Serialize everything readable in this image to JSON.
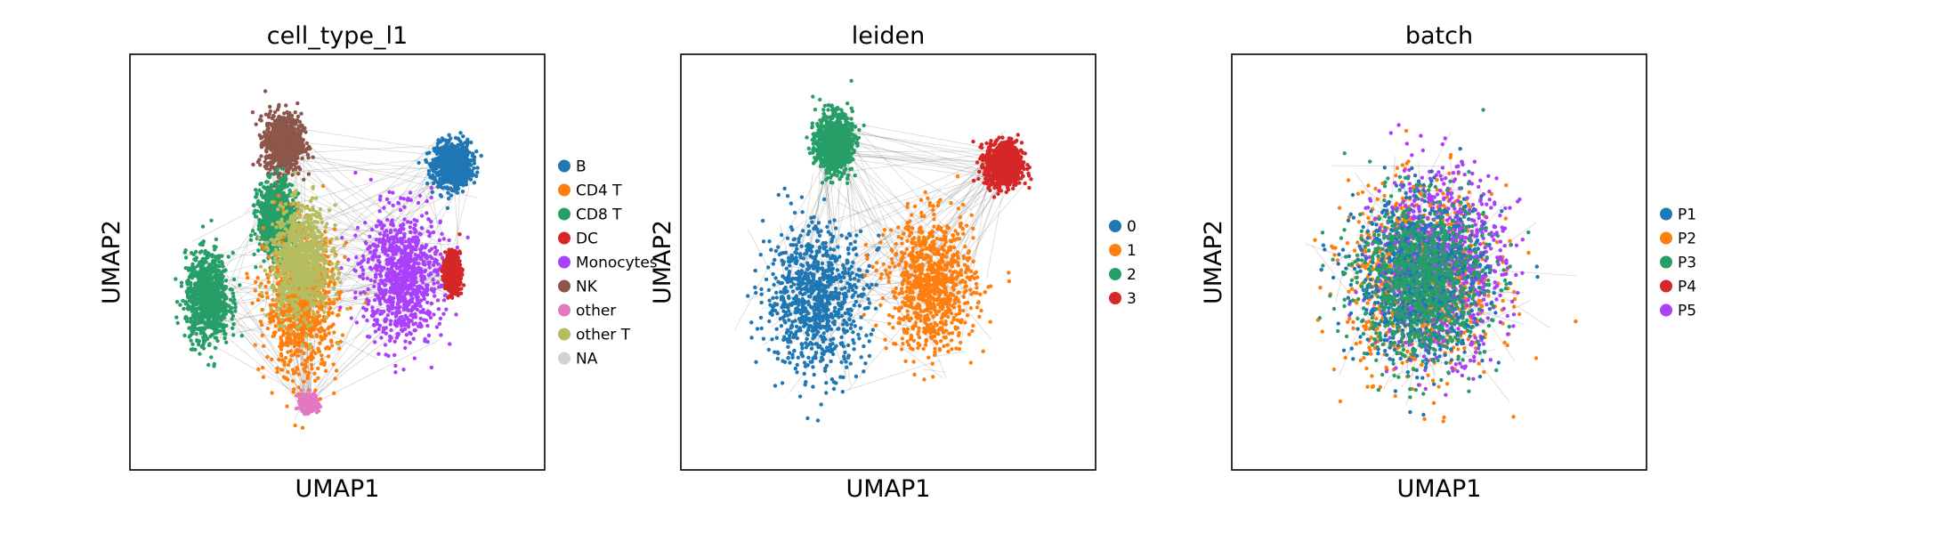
{
  "chart_data": [
    {
      "type": "scatter",
      "title": "cell_type_l1",
      "xlabel": "UMAP1",
      "ylabel": "UMAP2",
      "grid": false,
      "ticks": false,
      "overlay": "gray PAGA-style connecting edges behind points",
      "legend_position": "right",
      "legend": [
        {
          "label": "B",
          "color": "#1f77b4"
        },
        {
          "label": "CD4 T",
          "color": "#ff7f0e"
        },
        {
          "label": "CD8 T",
          "color": "#279e68"
        },
        {
          "label": "DC",
          "color": "#d62728"
        },
        {
          "label": "Monocytes",
          "color": "#aa40fc"
        },
        {
          "label": "NK",
          "color": "#8c564b"
        },
        {
          "label": "other",
          "color": "#e377c2"
        },
        {
          "label": "other T",
          "color": "#b5bd61"
        },
        {
          "label": "NA",
          "color": "#d3d3d3"
        }
      ],
      "clusters": [
        {
          "group": "B",
          "center": [
            0.82,
            0.77
          ],
          "spread": [
            0.05,
            0.06
          ]
        },
        {
          "group": "NK",
          "center": [
            0.35,
            0.83
          ],
          "spread": [
            0.05,
            0.08
          ]
        },
        {
          "group": "CD8 T",
          "center": [
            0.14,
            0.4
          ],
          "spread": [
            0.06,
            0.12
          ]
        },
        {
          "group": "CD8 T",
          "center": [
            0.33,
            0.62
          ],
          "spread": [
            0.05,
            0.1
          ]
        },
        {
          "group": "CD4 T",
          "center": [
            0.4,
            0.38
          ],
          "spread": [
            0.1,
            0.2
          ]
        },
        {
          "group": "Monocytes",
          "center": [
            0.68,
            0.46
          ],
          "spread": [
            0.11,
            0.18
          ]
        },
        {
          "group": "DC",
          "center": [
            0.82,
            0.47
          ],
          "spread": [
            0.02,
            0.05
          ]
        },
        {
          "group": "other",
          "center": [
            0.42,
            0.11
          ],
          "spread": [
            0.02,
            0.02
          ]
        },
        {
          "group": "other T",
          "center": [
            0.4,
            0.5
          ],
          "spread": [
            0.08,
            0.15
          ]
        }
      ]
    },
    {
      "type": "scatter",
      "title": "leiden",
      "xlabel": "UMAP1",
      "ylabel": "UMAP2",
      "grid": false,
      "ticks": false,
      "overlay": "gray PAGA-style connecting edges behind points",
      "legend_position": "right",
      "legend": [
        {
          "label": "0",
          "color": "#1f77b4"
        },
        {
          "label": "1",
          "color": "#ff7f0e"
        },
        {
          "label": "2",
          "color": "#279e68"
        },
        {
          "label": "3",
          "color": "#d62728"
        }
      ],
      "clusters": [
        {
          "group": "0",
          "center": [
            0.3,
            0.4
          ],
          "spread": [
            0.14,
            0.2
          ]
        },
        {
          "group": "1",
          "center": [
            0.62,
            0.44
          ],
          "spread": [
            0.12,
            0.18
          ]
        },
        {
          "group": "2",
          "center": [
            0.35,
            0.83
          ],
          "spread": [
            0.05,
            0.08
          ]
        },
        {
          "group": "3",
          "center": [
            0.82,
            0.77
          ],
          "spread": [
            0.05,
            0.06
          ]
        }
      ]
    },
    {
      "type": "scatter",
      "title": "batch",
      "xlabel": "UMAP1",
      "ylabel": "UMAP2",
      "grid": false,
      "ticks": false,
      "overlay": "gray PAGA-style connecting edges behind points",
      "legend_position": "right",
      "legend": [
        {
          "label": "P1",
          "color": "#1f77b4"
        },
        {
          "label": "P2",
          "color": "#ff7f0e"
        },
        {
          "label": "P3",
          "color": "#279e68"
        },
        {
          "label": "P4",
          "color": "#d62728"
        },
        {
          "label": "P5",
          "color": "#aa40fc"
        }
      ],
      "clusters": [
        {
          "group": "P2",
          "center": [
            0.45,
            0.45
          ],
          "spread": [
            0.2,
            0.25
          ]
        },
        {
          "group": "P5",
          "center": [
            0.5,
            0.5
          ],
          "spread": [
            0.18,
            0.25
          ]
        },
        {
          "group": "P1",
          "center": [
            0.45,
            0.45
          ],
          "spread": [
            0.18,
            0.22
          ]
        },
        {
          "group": "P3",
          "center": [
            0.45,
            0.45
          ],
          "spread": [
            0.18,
            0.22
          ]
        }
      ]
    }
  ]
}
